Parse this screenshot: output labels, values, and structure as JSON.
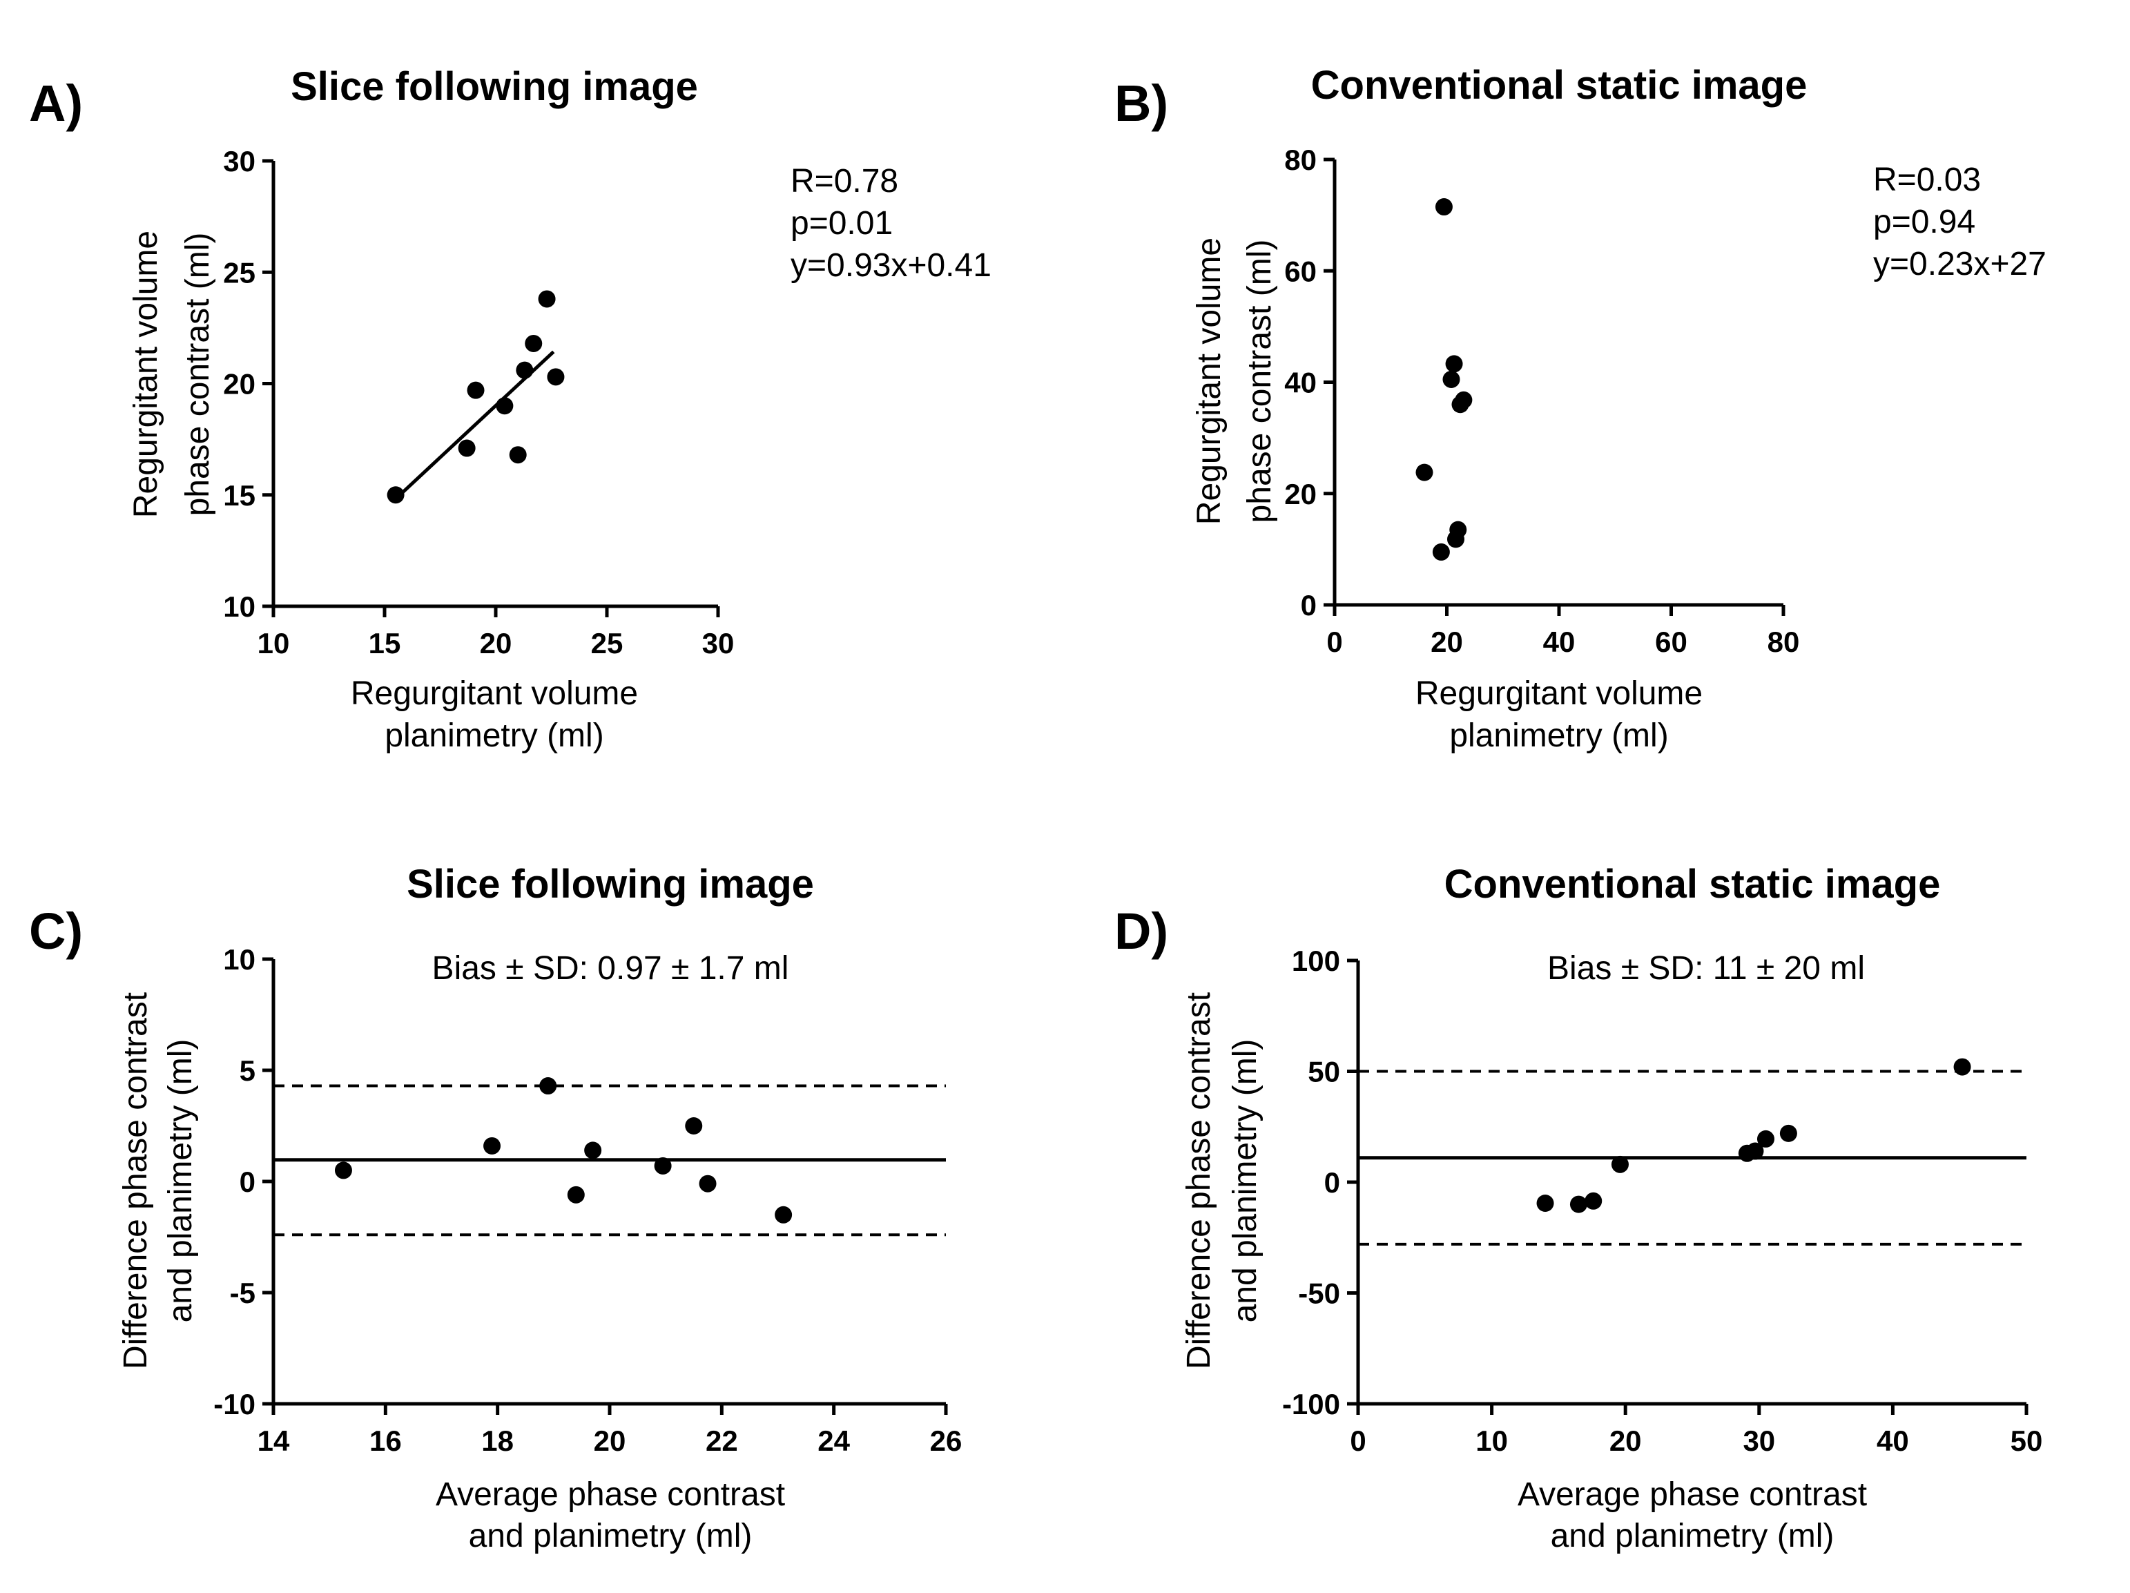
{
  "figure": {
    "panels": [
      "A)",
      "B)",
      "C)",
      "D)"
    ]
  },
  "chart_data": [
    {
      "id": "A",
      "type": "scatter",
      "panel_letter": "A)",
      "title": "Slice following image",
      "xlabel_lines": [
        "Regurgitant volume",
        "planimetry (ml)"
      ],
      "ylabel_lines": [
        "Regurgitant volume",
        "phase contrast (ml)"
      ],
      "xlim": [
        10,
        30
      ],
      "ylim": [
        10,
        30
      ],
      "xticks": [
        10,
        15,
        20,
        25,
        30
      ],
      "yticks": [
        10,
        15,
        20,
        25,
        30
      ],
      "points": [
        [
          15.5,
          15.0
        ],
        [
          18.7,
          17.1
        ],
        [
          19.1,
          19.7
        ],
        [
          20.4,
          19.0
        ],
        [
          21.0,
          16.8
        ],
        [
          21.3,
          20.6
        ],
        [
          21.7,
          21.8
        ],
        [
          22.3,
          23.8
        ],
        [
          22.7,
          20.3
        ]
      ],
      "fit_line": {
        "slope": 0.93,
        "intercept": 0.41,
        "x_range": [
          15.5,
          22.6
        ]
      },
      "annotation_lines": [
        "R=0.78",
        "p=0.01",
        "y=0.93x+0.41"
      ]
    },
    {
      "id": "B",
      "type": "scatter",
      "panel_letter": "B)",
      "title": "Conventional static image",
      "xlabel_lines": [
        "Regurgitant volume",
        "planimetry (ml)"
      ],
      "ylabel_lines": [
        "Regurgitant volume",
        "phase contrast (ml)"
      ],
      "xlim": [
        0,
        80
      ],
      "ylim": [
        0,
        80
      ],
      "xticks": [
        0,
        20,
        40,
        60,
        80
      ],
      "yticks": [
        0,
        20,
        40,
        60,
        80
      ],
      "points": [
        [
          19.5,
          71.5
        ],
        [
          16.0,
          23.8
        ],
        [
          19.0,
          9.5
        ],
        [
          21.3,
          43.3
        ],
        [
          20.8,
          40.5
        ],
        [
          22.4,
          36.0
        ],
        [
          23.0,
          36.8
        ],
        [
          22.0,
          13.5
        ],
        [
          21.6,
          11.8
        ]
      ],
      "annotation_lines": [
        "R=0.03",
        "p=0.94",
        "y=0.23x+27"
      ]
    },
    {
      "id": "C",
      "type": "scatter",
      "panel_letter": "C)",
      "title": "Slice following image",
      "xlabel_lines": [
        "Average phase contrast",
        "and planimetry (ml)"
      ],
      "ylabel_lines": [
        "Difference phase contrast",
        "and planimetry (ml)"
      ],
      "xlim": [
        14,
        26
      ],
      "ylim": [
        -10,
        10
      ],
      "xticks": [
        14,
        16,
        18,
        20,
        22,
        24,
        26
      ],
      "yticks": [
        -10,
        -5,
        0,
        5,
        10
      ],
      "points": [
        [
          15.25,
          0.5
        ],
        [
          17.9,
          1.6
        ],
        [
          18.9,
          4.3
        ],
        [
          19.4,
          -0.6
        ],
        [
          19.7,
          1.4
        ],
        [
          20.95,
          0.7
        ],
        [
          21.5,
          2.5
        ],
        [
          21.75,
          -0.1
        ],
        [
          23.1,
          -1.5
        ]
      ],
      "bias": 0.97,
      "loa": [
        4.3,
        -2.4
      ],
      "annotation_lines": [
        "Bias ± SD: 0.97 ± 1.7 ml"
      ]
    },
    {
      "id": "D",
      "type": "scatter",
      "panel_letter": "D)",
      "title": "Conventional static image",
      "xlabel_lines": [
        "Average phase contrast",
        "and planimetry (ml)"
      ],
      "ylabel_lines": [
        "Difference phase contrast",
        "and planimetry (ml)"
      ],
      "xlim": [
        0,
        50
      ],
      "ylim": [
        -100,
        100
      ],
      "xticks": [
        0,
        10,
        20,
        30,
        40,
        50
      ],
      "yticks": [
        -100,
        -50,
        0,
        50,
        100
      ],
      "points": [
        [
          14.0,
          -9.5
        ],
        [
          16.5,
          -10.0
        ],
        [
          17.6,
          -8.5
        ],
        [
          19.6,
          8.0
        ],
        [
          29.1,
          13.0
        ],
        [
          29.7,
          14.0
        ],
        [
          30.5,
          19.5
        ],
        [
          32.2,
          22.0
        ],
        [
          45.2,
          52.0
        ]
      ],
      "bias": 11,
      "loa": [
        50,
        -28
      ],
      "annotation_lines": [
        "Bias ± SD: 11 ± 20 ml"
      ]
    }
  ]
}
